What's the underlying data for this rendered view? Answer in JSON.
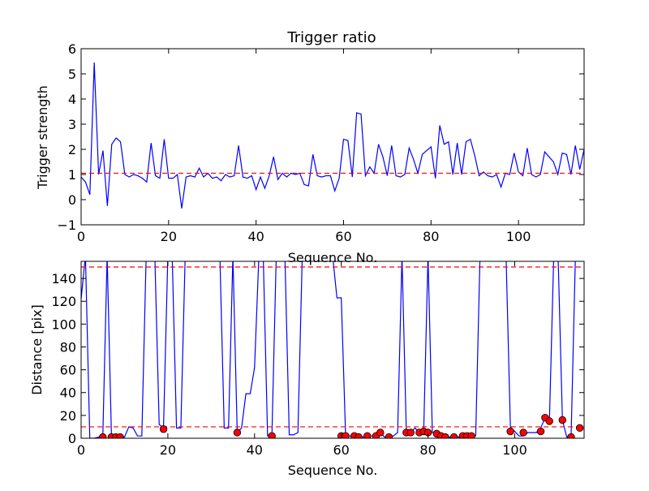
{
  "chart_data": [
    {
      "type": "line",
      "title": "Trigger ratio",
      "xlabel": "Sequence No.",
      "ylabel": "Trigger strength",
      "xlim": [
        0,
        115
      ],
      "ylim": [
        -1,
        6
      ],
      "xticks": [
        0,
        20,
        40,
        60,
        80,
        100
      ],
      "yticks": [
        -1,
        0,
        1,
        2,
        3,
        4,
        5,
        6
      ],
      "grid": false,
      "series": [
        {
          "color": "#0000ff",
          "style": "solid",
          "x": [
            0,
            1,
            2,
            3,
            4,
            5,
            6,
            7,
            8,
            9,
            10,
            11,
            12,
            13,
            14,
            15,
            16,
            17,
            18,
            19,
            20,
            21,
            22,
            23,
            24,
            25,
            26,
            27,
            28,
            29,
            30,
            31,
            32,
            33,
            34,
            35,
            36,
            37,
            38,
            39,
            40,
            41,
            42,
            43,
            44,
            45,
            46,
            47,
            48,
            49,
            50,
            51,
            52,
            53,
            54,
            55,
            56,
            57,
            58,
            59,
            60,
            61,
            62,
            63,
            64,
            65,
            66,
            67,
            68,
            69,
            70,
            71,
            72,
            73,
            74,
            75,
            76,
            77,
            78,
            79,
            80,
            81,
            82,
            83,
            84,
            85,
            86,
            87,
            88,
            89,
            90,
            91,
            92,
            93,
            94,
            95,
            96,
            97,
            98,
            99,
            100,
            101,
            102,
            103,
            104,
            105,
            106,
            107,
            108,
            109,
            110,
            111,
            112,
            113,
            114,
            115
          ],
          "y": [
            0.9,
            0.7,
            0.2,
            5.45,
            1.0,
            1.95,
            -0.25,
            2.2,
            2.45,
            2.3,
            1.0,
            0.9,
            1.0,
            0.95,
            0.85,
            0.7,
            2.25,
            0.95,
            0.85,
            2.4,
            0.85,
            0.85,
            1.0,
            -0.35,
            0.9,
            0.95,
            0.9,
            1.25,
            0.9,
            1.05,
            0.85,
            0.9,
            0.75,
            1.0,
            0.9,
            0.95,
            2.15,
            0.9,
            0.85,
            0.95,
            0.4,
            0.9,
            0.45,
            0.95,
            1.7,
            0.8,
            1.05,
            0.9,
            1.05,
            1.0,
            1.05,
            0.6,
            0.55,
            1.8,
            0.95,
            0.9,
            0.95,
            0.95,
            0.35,
            0.85,
            2.4,
            2.35,
            0.9,
            3.45,
            3.4,
            0.95,
            1.3,
            1.05,
            2.2,
            1.7,
            0.95,
            2.15,
            0.95,
            0.9,
            1.0,
            2.05,
            1.6,
            1.05,
            1.8,
            1.95,
            2.1,
            0.85,
            2.95,
            2.2,
            2.3,
            1.0,
            2.25,
            1.0,
            2.3,
            2.4,
            1.75,
            0.95,
            1.1,
            0.95,
            0.9,
            1.0,
            0.5,
            1.05,
            1.0,
            1.85,
            1.1,
            0.95,
            2.05,
            1.0,
            0.9,
            1.0,
            1.9,
            1.7,
            1.5,
            1.0,
            1.85,
            1.8,
            1.0,
            2.15,
            1.2,
            2.0
          ]
        },
        {
          "color": "#ff0000",
          "style": "dashed",
          "x": [
            0,
            115
          ],
          "y": [
            1.05,
            1.05
          ]
        }
      ]
    },
    {
      "type": "line",
      "title": "",
      "xlabel": "Sequence No.",
      "ylabel": "Distance [pix]",
      "xlim": [
        0,
        116
      ],
      "ylim": [
        0,
        155
      ],
      "xticks": [
        0,
        20,
        40,
        60,
        80,
        100
      ],
      "yticks": [
        0,
        20,
        40,
        60,
        80,
        100,
        120,
        140
      ],
      "grid": false,
      "series": [
        {
          "color": "#0000ff",
          "style": "solid",
          "x": [
            0,
            1,
            2,
            3,
            4,
            5,
            6,
            7,
            8,
            9,
            10,
            11,
            12,
            13,
            14,
            15,
            16,
            17,
            18,
            19,
            20,
            21,
            22,
            23,
            24,
            25,
            26,
            27,
            28,
            29,
            30,
            31,
            32,
            33,
            34,
            35,
            36,
            37,
            38,
            39,
            40,
            41,
            42,
            43,
            44,
            45,
            46,
            47,
            48,
            49,
            50,
            51,
            52,
            53,
            54,
            55,
            56,
            57,
            58,
            59,
            60,
            61,
            62,
            63,
            64,
            65,
            66,
            67,
            68,
            69,
            70,
            71,
            72,
            73,
            74,
            75,
            76,
            77,
            78,
            79,
            80,
            81,
            82,
            83,
            84,
            85,
            86,
            87,
            88,
            89,
            90,
            91,
            92,
            93,
            94,
            95,
            96,
            97,
            98,
            99,
            100,
            101,
            102,
            103,
            104,
            105,
            106,
            107,
            108,
            109,
            110,
            111,
            112,
            113,
            114,
            115
          ],
          "y": [
            122,
            160,
            0,
            0,
            1,
            1,
            160,
            1,
            1,
            1,
            1,
            10,
            9,
            2,
            2,
            160,
            160,
            160,
            12,
            9,
            160,
            160,
            9,
            9,
            160,
            160,
            160,
            160,
            160,
            160,
            160,
            160,
            160,
            9,
            9,
            160,
            5,
            9,
            39,
            39,
            62,
            160,
            160,
            2,
            2,
            160,
            160,
            160,
            3,
            3,
            5,
            160,
            160,
            160,
            160,
            160,
            160,
            160,
            160,
            123,
            123,
            2,
            2,
            1,
            2,
            1,
            2,
            2,
            2,
            5,
            1,
            1,
            2,
            5,
            160,
            5,
            5,
            9,
            5,
            5,
            160,
            5,
            5,
            1,
            1,
            1,
            1,
            1,
            2,
            2,
            2,
            2,
            160,
            160,
            160,
            160,
            160,
            160,
            160,
            10,
            6,
            2,
            2,
            5,
            5,
            5,
            9,
            18,
            15,
            160,
            160,
            16,
            1,
            1,
            160,
            160
          ]
        },
        {
          "color": "#ff0000",
          "style": "markers",
          "marker": "circle",
          "x": [
            5,
            7,
            8,
            9,
            19,
            36,
            44,
            60,
            61,
            63,
            64,
            66,
            68,
            69,
            71,
            75,
            76,
            78,
            79,
            80,
            82,
            83,
            84,
            86,
            88,
            89,
            90,
            99,
            102,
            106,
            107,
            108,
            111,
            113,
            115
          ],
          "y": [
            1,
            1,
            1,
            1,
            8,
            5,
            2,
            2,
            2,
            2,
            1,
            2,
            2,
            5,
            1,
            5,
            5,
            5,
            6,
            5,
            4,
            2,
            1,
            1,
            2,
            2,
            2,
            6,
            5,
            6,
            18,
            15,
            16,
            1,
            9
          ]
        },
        {
          "color": "#ff0000",
          "style": "dashed",
          "x": [
            0,
            116
          ],
          "y": [
            150,
            150
          ]
        },
        {
          "color": "#ff0000",
          "style": "dashed",
          "x": [
            0,
            116
          ],
          "y": [
            10,
            10
          ]
        }
      ]
    }
  ]
}
